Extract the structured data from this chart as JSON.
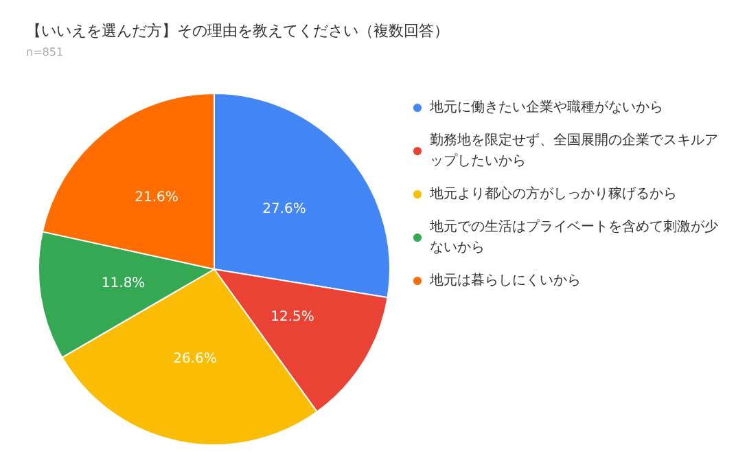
{
  "chart_data": {
    "type": "pie",
    "title": "【いいえを選んだ方】その理由を教えてください（複数回答）",
    "subtitle": "n=851",
    "categories": [
      "地元に働きたい企業や職種がないから",
      "勤務地を限定せず、全国展開の企業でスキルアップしたいから",
      "地元より都心の方がしっかり稼げるから",
      "地元での生活はプライベートを含めて刺激が少ないから",
      "地元は暮らしにくいから"
    ],
    "values": [
      27.6,
      12.5,
      26.6,
      11.8,
      21.6
    ],
    "colors": [
      "#4285f4",
      "#ea4335",
      "#fbbc04",
      "#34a853",
      "#ff6d01"
    ],
    "value_labels": [
      "27.6%",
      "12.5%",
      "26.6%",
      "11.8%",
      "21.6%"
    ],
    "legend": "right"
  }
}
